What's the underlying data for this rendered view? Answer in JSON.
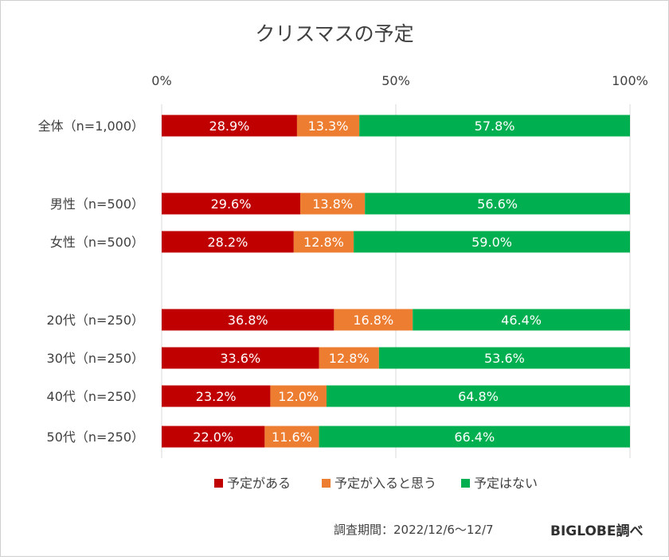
{
  "chart_data": {
    "type": "bar",
    "orientation": "horizontal",
    "stacked": true,
    "title": "クリスマスの予定",
    "xlim": [
      0,
      100
    ],
    "x_ticks": [
      "0%",
      "50%",
      "100%"
    ],
    "grid": true,
    "legend_position": "bottom",
    "categories": [
      "全体（n=1,000）",
      "男性（n=500）",
      "女性（n=500）",
      "20代（n=250）",
      "30代（n=250）",
      "40代（n=250）",
      "50代（n=250）"
    ],
    "series": [
      {
        "name": "予定がある",
        "color": "#c00000",
        "values": [
          28.9,
          29.6,
          28.2,
          36.8,
          33.6,
          23.2,
          22.0
        ]
      },
      {
        "name": "予定が入ると思う",
        "color": "#ed7d31",
        "values": [
          13.3,
          13.8,
          12.8,
          16.8,
          12.8,
          12.0,
          11.6
        ]
      },
      {
        "name": "予定はない",
        "color": "#00b050",
        "values": [
          57.8,
          56.6,
          59.0,
          46.4,
          53.6,
          64.8,
          66.4
        ]
      }
    ],
    "value_format": "%"
  },
  "footer": {
    "survey_period": "調査期間：2022/12/6～12/7",
    "source": "BIGLOBE調べ"
  }
}
